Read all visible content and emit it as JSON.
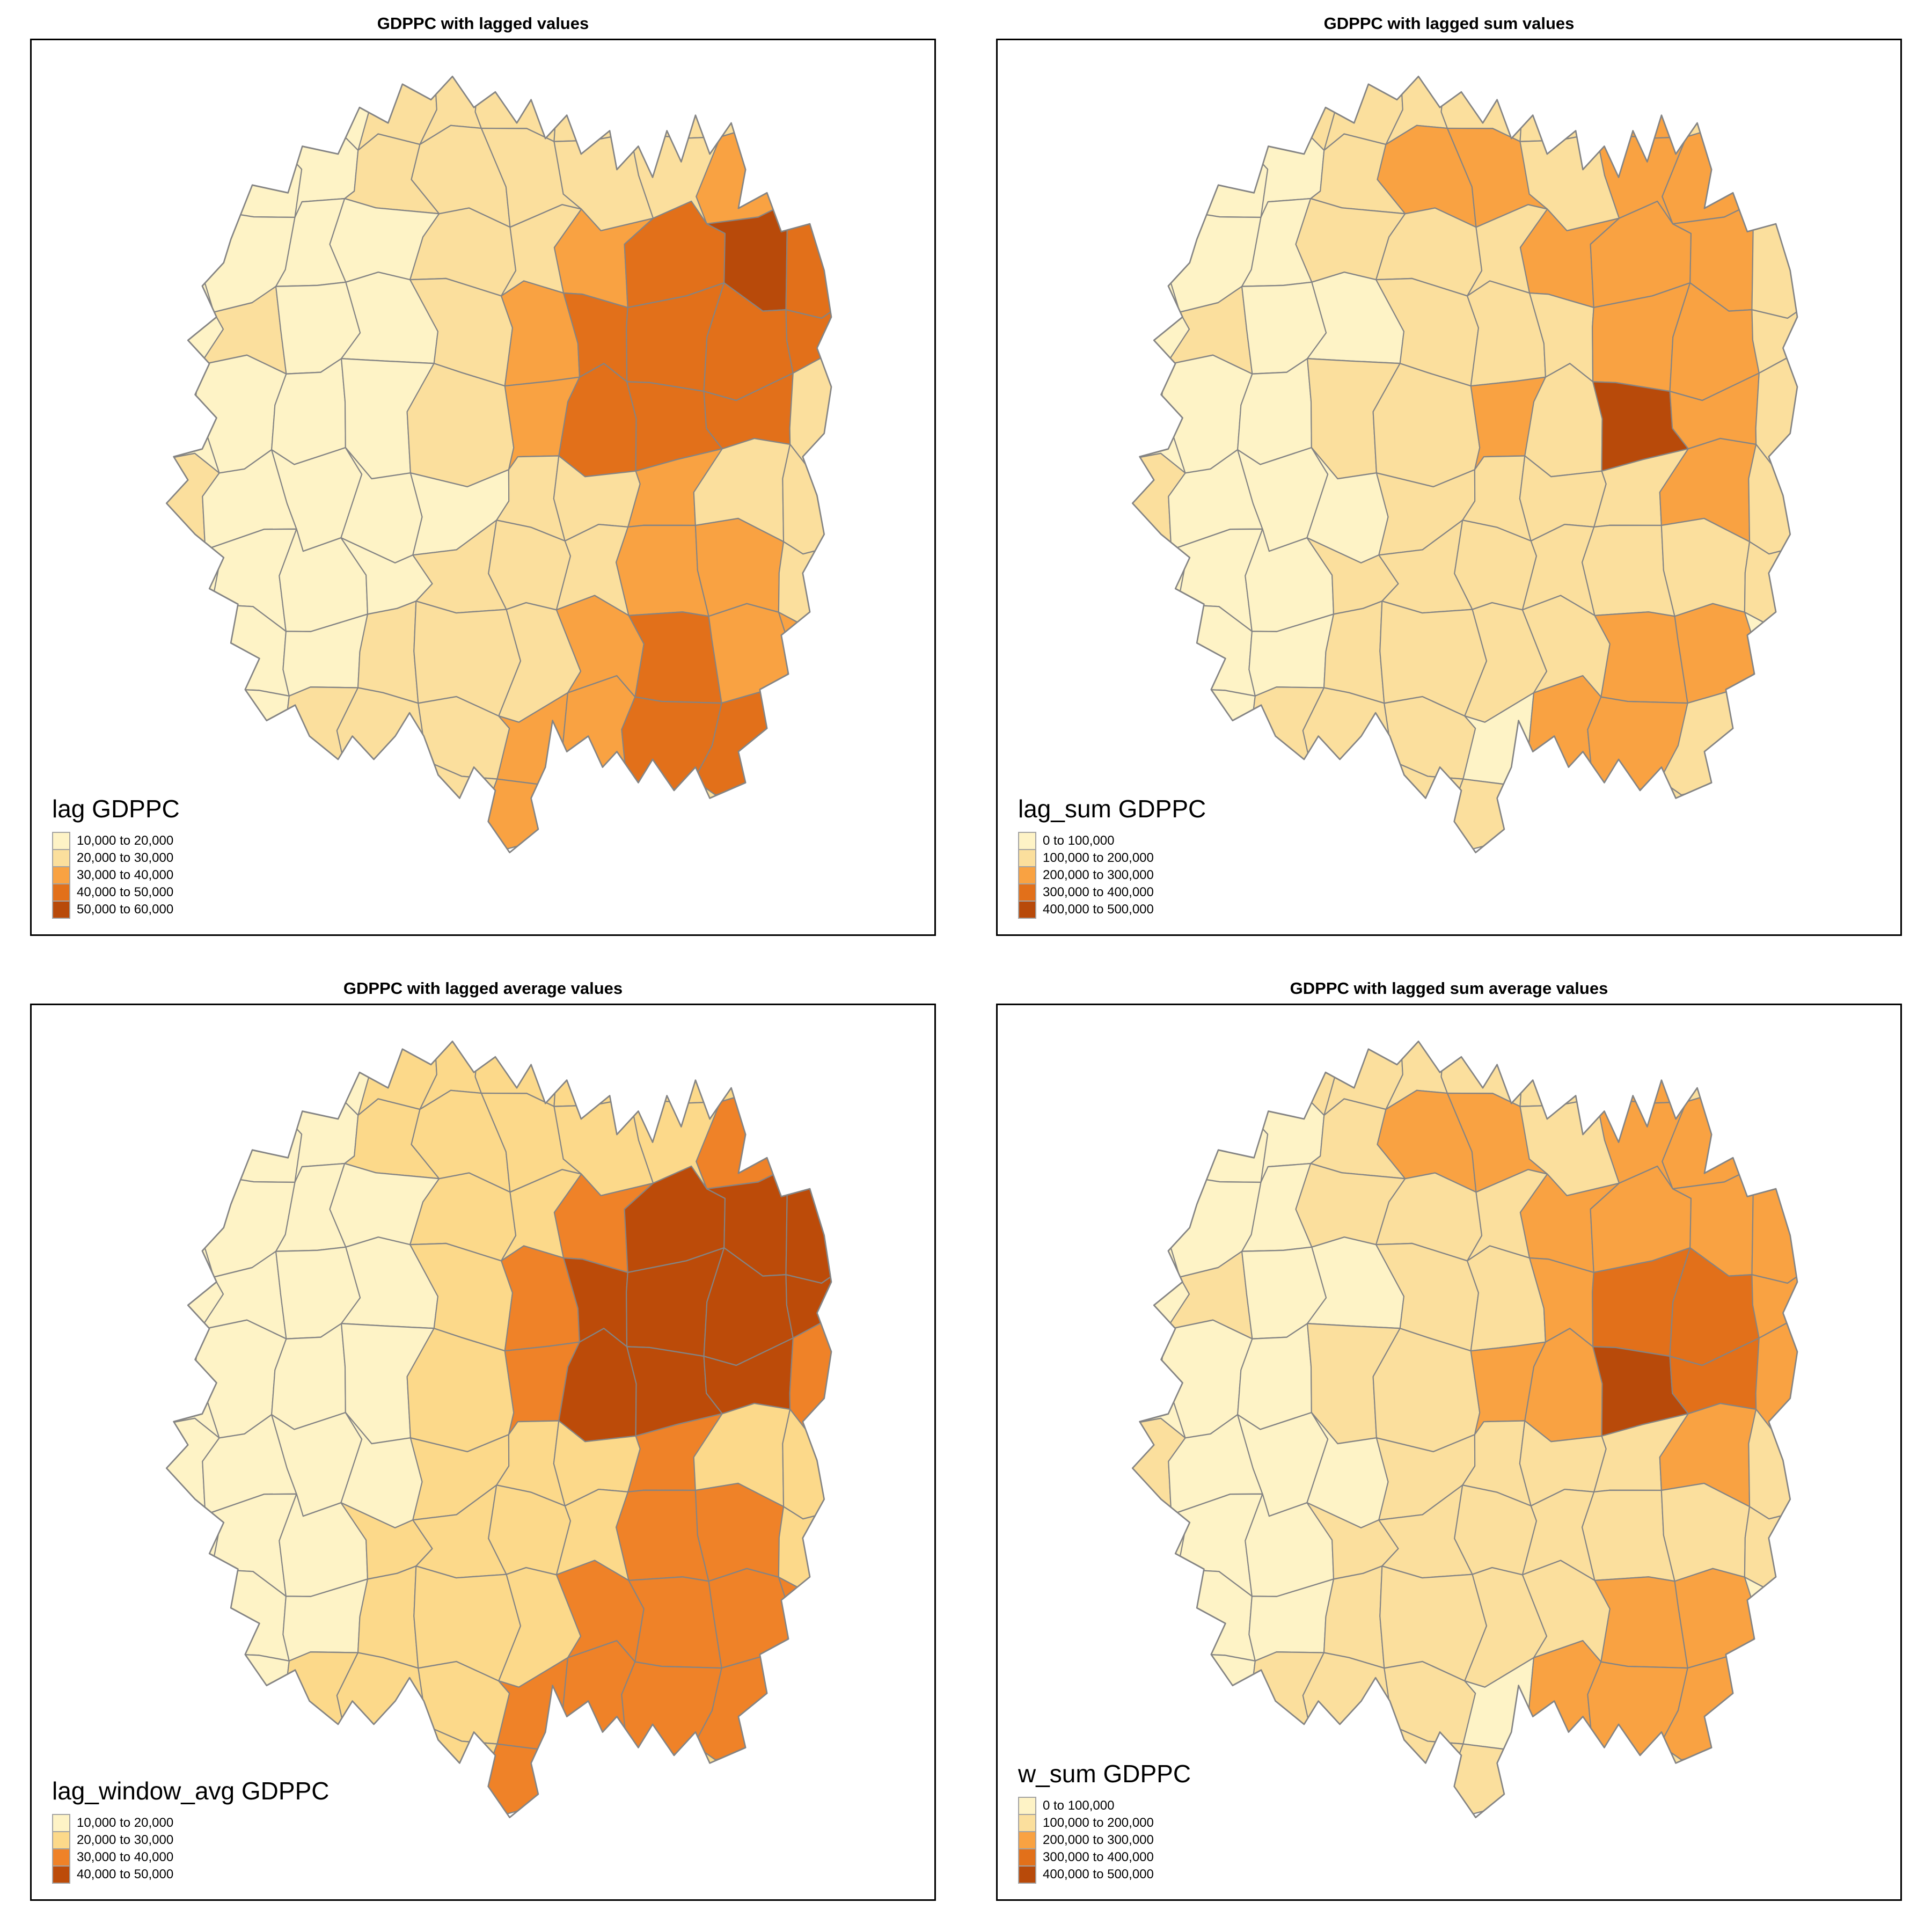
{
  "page": {
    "background": "#ffffff",
    "county_border_color": "#848484",
    "frame_border_color": "#000000",
    "swatch_border_color": "#a3a3a3"
  },
  "chart_data": [
    {
      "type": "heatmap",
      "subtype": "choropleth-map",
      "region": "Hunan counties",
      "title": "GDPPC with lagged values",
      "legend_title": "lag GDPPC",
      "legend_position": "bottom-left",
      "classes": [
        "10,000 to 20,000",
        "20,000 to 30,000",
        "30,000 to 40,000",
        "40,000 to 50,000",
        "50,000 to 60,000"
      ],
      "colors": [
        "#FEF3C6",
        "#FBDF9D",
        "#F9A242",
        "#E2701A",
        "#B84A0A"
      ],
      "value_range": [
        10000,
        60000
      ],
      "region_class_grid": [
        "1112222222",
        "1112222233",
        "1111223454",
        "1211234444",
        "1111234442",
        "2111122322",
        "1111222332",
        "1112223433",
        "1122233442",
        "1122232322"
      ]
    },
    {
      "type": "heatmap",
      "subtype": "choropleth-map",
      "region": "Hunan counties",
      "title": "GDPPC with lagged sum values",
      "legend_title": "lag_sum GDPPC",
      "legend_position": "bottom-left",
      "classes": [
        "0 to 100,000",
        "100,000 to 200,000",
        "200,000 to 300,000",
        "300,000 to 400,000",
        "400,000 to 500,000"
      ],
      "colors": [
        "#FEF3C6",
        "#FBDF9D",
        "#F9A242",
        "#E2701A",
        "#B84A0A"
      ],
      "value_range": [
        0,
        500000
      ],
      "region_class_grid": [
        "1122222321",
        "1112332332",
        "1112223332",
        "1211222332",
        "1112232532",
        "2111222232",
        "1112222222",
        "1112222331",
        "1122213322",
        "1122223221"
      ]
    },
    {
      "type": "heatmap",
      "subtype": "choropleth-map",
      "region": "Hunan counties",
      "title": "GDPPC with lagged average values",
      "legend_title": "lag_window_avg GDPPC",
      "legend_position": "bottom-left",
      "classes": [
        "10,000 to 20,000",
        "20,000 to 30,000",
        "30,000 to 40,000",
        "40,000 to 50,000"
      ],
      "colors": [
        "#FEF3C6",
        "#FCD98A",
        "#EF8228",
        "#BC4B09"
      ],
      "value_range": [
        10000,
        50000
      ],
      "region_class_grid": [
        "1112222222",
        "1112222232",
        "1111223444",
        "1111234444",
        "1111234443",
        "1111222322",
        "1112222332",
        "1112223333",
        "1122233332",
        "1122232322"
      ]
    },
    {
      "type": "heatmap",
      "subtype": "choropleth-map",
      "region": "Hunan counties",
      "title": "GDPPC with lagged sum average values",
      "legend_title": "w_sum GDPPC",
      "legend_position": "bottom-left",
      "classes": [
        "0 to 100,000",
        "100,000 to 200,000",
        "200,000 to 300,000",
        "300,000 to 400,000",
        "400,000 to 500,000"
      ],
      "colors": [
        "#FEF3C6",
        "#FBDF9D",
        "#F9A242",
        "#E2701A",
        "#B84A0A"
      ],
      "value_range": [
        0,
        500000
      ],
      "region_class_grid": [
        "1122222321",
        "1112332332",
        "1112223333",
        "1211223443",
        "1112233543",
        "2111222232",
        "1112222222",
        "1112222331",
        "1122213332",
        "1122223221"
      ]
    }
  ]
}
